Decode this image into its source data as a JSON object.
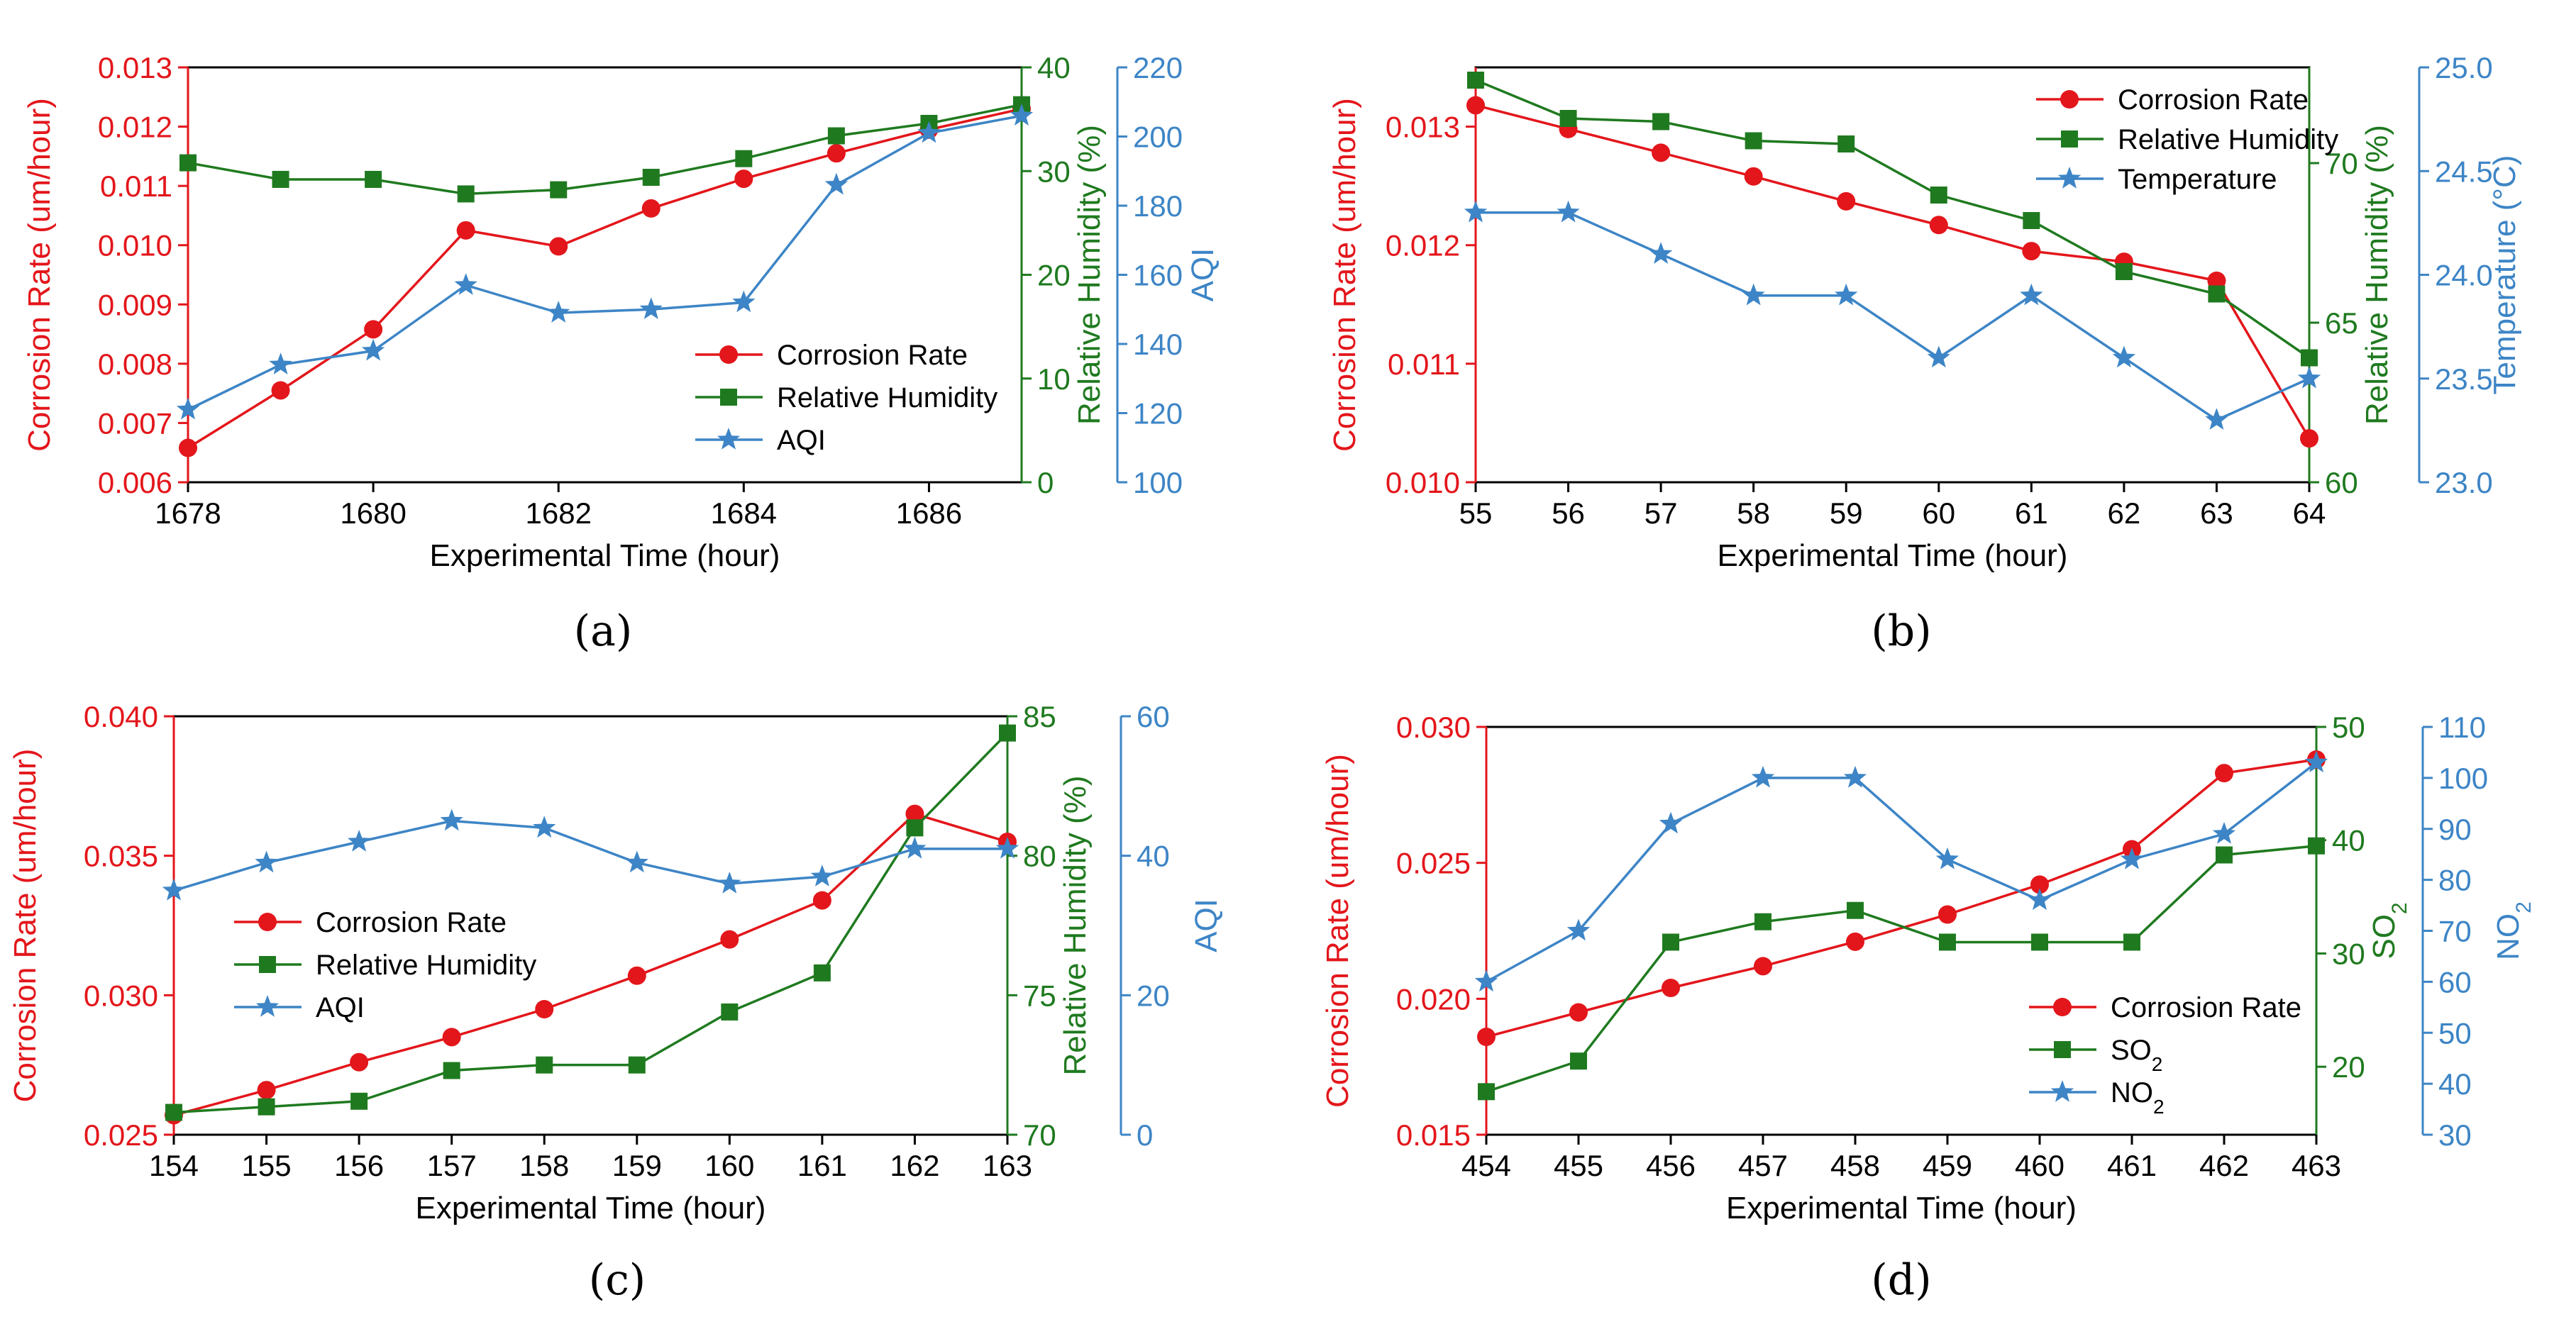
{
  "colors": {
    "corrosion": "#e3161b",
    "secondary": "#1f7a1f",
    "tertiary": "#3d85c6",
    "axis": "#000000"
  },
  "chart_data": [
    {
      "type": "line",
      "panel": "a",
      "caption": "(a)",
      "xlabel": "Experimental Time (hour)",
      "x": [
        1678,
        1679,
        1680,
        1681,
        1682,
        1683,
        1684,
        1685,
        1686,
        1687
      ],
      "xlim": [
        1678,
        1687
      ],
      "xticks": [
        "1678",
        "1680",
        "1682",
        "1684",
        "1686"
      ],
      "xtick_values": [
        1678,
        1680,
        1682,
        1684,
        1686
      ],
      "legend_position": "bottom-right",
      "axes": [
        {
          "role": "left",
          "label": "Corrosion Rate (um/hour)",
          "color": "#e3161b",
          "ylim": [
            0.006,
            0.013
          ],
          "ticks": [
            "0.006",
            "0.007",
            "0.008",
            "0.009",
            "0.010",
            "0.011",
            "0.012",
            "0.013"
          ]
        },
        {
          "role": "right1",
          "label": "Relative Humidity (%)",
          "color": "#1f7a1f",
          "ylim": [
            0,
            40
          ],
          "ticks": [
            "0",
            "10",
            "20",
            "30",
            "40"
          ]
        },
        {
          "role": "right2",
          "label": "AQI",
          "color": "#3d85c6",
          "ylim": [
            100,
            220
          ],
          "ticks": [
            "100",
            "120",
            "140",
            "160",
            "180",
            "200",
            "220"
          ]
        }
      ],
      "series": [
        {
          "name": "Corrosion Rate",
          "axis": 0,
          "marker": "circle",
          "values": [
            0.00658,
            0.00755,
            0.00858,
            0.01025,
            0.00998,
            0.01062,
            0.01112,
            0.01155,
            0.01195,
            0.0123
          ]
        },
        {
          "name": "Relative Humidity",
          "axis": 1,
          "marker": "square",
          "values": [
            30.8,
            29.2,
            29.2,
            27.8,
            28.2,
            29.4,
            31.2,
            33.4,
            34.6,
            36.4
          ]
        },
        {
          "name": "AQI",
          "axis": 2,
          "marker": "star",
          "values": [
            121,
            134,
            138,
            157,
            149,
            150,
            152,
            186,
            201,
            206
          ]
        }
      ]
    },
    {
      "type": "line",
      "panel": "b",
      "caption": "(b)",
      "xlabel": "Experimental Time (hour)",
      "x": [
        55,
        56,
        57,
        58,
        59,
        60,
        61,
        62,
        63,
        64
      ],
      "xlim": [
        55,
        64
      ],
      "xticks": [
        "55",
        "56",
        "57",
        "58",
        "59",
        "60",
        "61",
        "62",
        "63",
        "64"
      ],
      "xtick_values": [
        55,
        56,
        57,
        58,
        59,
        60,
        61,
        62,
        63,
        64
      ],
      "legend_position": "top-right",
      "axes": [
        {
          "role": "left",
          "label": "Corrosion Rate (um/hour)",
          "color": "#e3161b",
          "ylim": [
            0.01,
            0.0135
          ],
          "ticks": [
            "0.010",
            "0.011",
            "0.012",
            "0.013"
          ],
          "tick_values": [
            0.01,
            0.011,
            0.012,
            0.013
          ]
        },
        {
          "role": "right1",
          "label": "Relative Humidity (%)",
          "color": "#1f7a1f",
          "ylim": [
            60,
            73
          ],
          "ticks": [
            "60",
            "65",
            "70"
          ],
          "tick_values": [
            60,
            65,
            70
          ]
        },
        {
          "role": "right2",
          "label": "Temperature (°C)",
          "color": "#3d85c6",
          "ylim": [
            23.0,
            25.0
          ],
          "ticks": [
            "23.0",
            "23.5",
            "24.0",
            "24.5",
            "25.0"
          ]
        }
      ],
      "series": [
        {
          "name": "Corrosion Rate",
          "axis": 0,
          "marker": "circle",
          "values": [
            0.01318,
            0.01298,
            0.01278,
            0.01258,
            0.01237,
            0.01217,
            0.01195,
            0.01186,
            0.0117,
            0.01037
          ]
        },
        {
          "name": "Relative Humidity",
          "axis": 1,
          "marker": "square",
          "values": [
            72.6,
            71.4,
            71.3,
            70.7,
            70.6,
            69.0,
            68.2,
            66.6,
            65.9,
            63.9
          ]
        },
        {
          "name": "Temperature",
          "axis": 2,
          "marker": "star",
          "values": [
            24.3,
            24.3,
            24.1,
            23.9,
            23.9,
            23.6,
            23.9,
            23.6,
            23.3,
            23.5
          ]
        }
      ]
    },
    {
      "type": "line",
      "panel": "c",
      "caption": "(c)",
      "xlabel": "Experimental Time (hour)",
      "x": [
        154,
        155,
        156,
        157,
        158,
        159,
        160,
        161,
        162,
        163
      ],
      "xlim": [
        154,
        163
      ],
      "xticks": [
        "154",
        "155",
        "156",
        "157",
        "158",
        "159",
        "160",
        "161",
        "162",
        "163"
      ],
      "xtick_values": [
        154,
        155,
        156,
        157,
        158,
        159,
        160,
        161,
        162,
        163
      ],
      "legend_position": "center-left",
      "axes": [
        {
          "role": "left",
          "label": "Corrosion Rate (um/hour)",
          "color": "#e3161b",
          "ylim": [
            0.025,
            0.04
          ],
          "ticks": [
            "0.025",
            "0.030",
            "0.035",
            "0.040"
          ]
        },
        {
          "role": "right1",
          "label": "Relative Humidity (%)",
          "color": "#1f7a1f",
          "ylim": [
            70,
            85
          ],
          "ticks": [
            "70",
            "75",
            "80",
            "85"
          ]
        },
        {
          "role": "right2",
          "label": "AQI",
          "color": "#3d85c6",
          "ylim": [
            0,
            60
          ],
          "ticks": [
            "0",
            "20",
            "40",
            "60"
          ]
        }
      ],
      "series": [
        {
          "name": "Corrosion Rate",
          "axis": 0,
          "marker": "circle",
          "values": [
            0.0257,
            0.0266,
            0.0276,
            0.0285,
            0.0295,
            0.0307,
            0.032,
            0.0334,
            0.0365,
            0.0355
          ]
        },
        {
          "name": "Relative Humidity",
          "axis": 1,
          "marker": "square",
          "values": [
            70.8,
            71.0,
            71.2,
            72.3,
            72.5,
            72.5,
            74.4,
            75.8,
            81.0,
            84.4
          ]
        },
        {
          "name": "AQI",
          "axis": 2,
          "marker": "star",
          "values": [
            35,
            39,
            42,
            45,
            44,
            39,
            36,
            37,
            41,
            41
          ]
        }
      ]
    },
    {
      "type": "line",
      "panel": "d",
      "caption": "(d)",
      "xlabel": "Experimental Time (hour)",
      "x": [
        454,
        455,
        456,
        457,
        458,
        459,
        460,
        461,
        462,
        463
      ],
      "xlim": [
        454,
        463
      ],
      "xticks": [
        "454",
        "455",
        "456",
        "457",
        "458",
        "459",
        "460",
        "461",
        "462",
        "463"
      ],
      "xtick_values": [
        454,
        455,
        456,
        457,
        458,
        459,
        460,
        461,
        462,
        463
      ],
      "legend_position": "bottom-right",
      "axes": [
        {
          "role": "left",
          "label": "Corrosion Rate (um/hour)",
          "color": "#e3161b",
          "ylim": [
            0.015,
            0.03
          ],
          "ticks": [
            "0.015",
            "0.020",
            "0.025",
            "0.030"
          ]
        },
        {
          "role": "right1",
          "label": "SO2",
          "sub_label": "2",
          "color": "#1f7a1f",
          "ylim": [
            14,
            50
          ],
          "ticks": [
            "20",
            "30",
            "40",
            "50"
          ],
          "tick_values": [
            20,
            30,
            40,
            50
          ]
        },
        {
          "role": "right2",
          "label": "NO2",
          "sub_label": "2",
          "color": "#3d85c6",
          "ylim": [
            30,
            110
          ],
          "ticks": [
            "30",
            "40",
            "50",
            "60",
            "70",
            "80",
            "90",
            "100",
            "110"
          ]
        }
      ],
      "series": [
        {
          "name": "Corrosion Rate",
          "axis": 0,
          "marker": "circle",
          "values": [
            0.0186,
            0.0195,
            0.0204,
            0.0212,
            0.0221,
            0.0231,
            0.0242,
            0.0255,
            0.0283,
            0.0288
          ]
        },
        {
          "name": "SO2",
          "axis": 1,
          "marker": "square",
          "values": [
            17.8,
            20.5,
            31.0,
            32.8,
            33.8,
            31.0,
            31.0,
            31.0,
            38.7,
            39.5
          ]
        },
        {
          "name": "NO2",
          "axis": 2,
          "marker": "star",
          "values": [
            60,
            70,
            91,
            100,
            100,
            84,
            76,
            84,
            89,
            103
          ]
        }
      ]
    }
  ]
}
